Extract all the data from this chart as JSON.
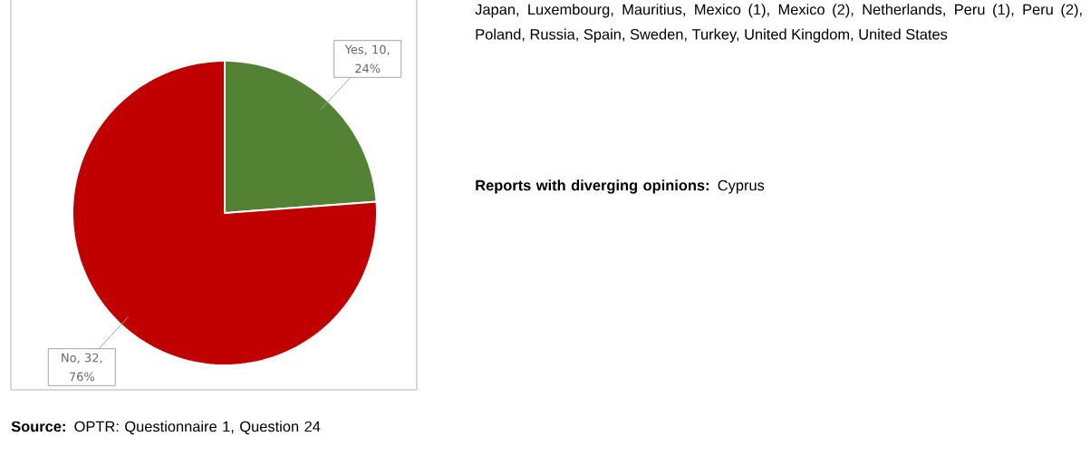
{
  "chart_data": {
    "type": "pie",
    "categories": [
      "Yes",
      "No"
    ],
    "values": [
      10,
      32
    ],
    "value_labels": [
      ", 10, 24%",
      ", 32, 76%"
    ],
    "colors": [
      "#548235",
      "#c00000"
    ],
    "legend": false,
    "annotations": [
      "Japan, Luxembourg, Mauritius, Mexico (1), Mexico (2), Netherlands, Peru (1), Peru (2), Poland, Russia, Spain, Sweden, Turkey, United Kingdom, United States",
      "**Reports with diverging opinions:** Cyprus",
      "**Source:** OPTR: Questionnaire 1, Question 24"
    ]
  }
}
